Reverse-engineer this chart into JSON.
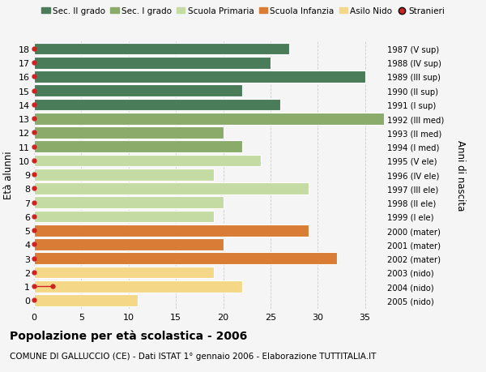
{
  "ages": [
    18,
    17,
    16,
    15,
    14,
    13,
    12,
    11,
    10,
    9,
    8,
    7,
    6,
    5,
    4,
    3,
    2,
    1,
    0
  ],
  "right_labels": [
    "1987 (V sup)",
    "1988 (IV sup)",
    "1989 (III sup)",
    "1990 (II sup)",
    "1991 (I sup)",
    "1992 (III med)",
    "1993 (II med)",
    "1994 (I med)",
    "1995 (V ele)",
    "1996 (IV ele)",
    "1997 (III ele)",
    "1998 (II ele)",
    "1999 (I ele)",
    "2000 (mater)",
    "2001 (mater)",
    "2002 (mater)",
    "2003 (nido)",
    "2004 (nido)",
    "2005 (nido)"
  ],
  "bar_values": [
    27,
    25,
    35,
    22,
    26,
    37,
    20,
    22,
    24,
    19,
    29,
    20,
    19,
    29,
    20,
    32,
    19,
    22,
    11
  ],
  "bar_colors": [
    "#4a7c59",
    "#4a7c59",
    "#4a7c59",
    "#4a7c59",
    "#4a7c59",
    "#8aab6a",
    "#8aab6a",
    "#8aab6a",
    "#c5dba4",
    "#c5dba4",
    "#c5dba4",
    "#c5dba4",
    "#c5dba4",
    "#d97c35",
    "#d97c35",
    "#d97c35",
    "#f5d788",
    "#f5d788",
    "#f5d788"
  ],
  "stranieri_values": [
    0,
    0,
    0,
    0,
    0,
    0,
    0,
    0,
    0,
    0,
    0,
    0,
    0,
    0,
    0,
    0,
    0,
    2,
    0
  ],
  "stranieri_color": "#cc2222",
  "legend_labels": [
    "Sec. II grado",
    "Sec. I grado",
    "Scuola Primaria",
    "Scuola Infanzia",
    "Asilo Nido",
    "Stranieri"
  ],
  "legend_colors": [
    "#4a7c59",
    "#8aab6a",
    "#c5dba4",
    "#d97c35",
    "#f5d788",
    "#cc2222"
  ],
  "ylabel": "Età alunni",
  "right_ylabel": "Anni di nascita",
  "title": "Popolazione per età scolastica - 2006",
  "subtitle": "COMUNE DI GALLUCCIO (CE) - Dati ISTAT 1° gennaio 2006 - Elaborazione TUTTITALIA.IT",
  "xlim": [
    0,
    37
  ],
  "xticks": [
    0,
    5,
    10,
    15,
    20,
    25,
    30,
    35
  ],
  "background_color": "#f5f5f5",
  "bar_edge_color": "#ffffff",
  "grid_color": "#cccccc"
}
